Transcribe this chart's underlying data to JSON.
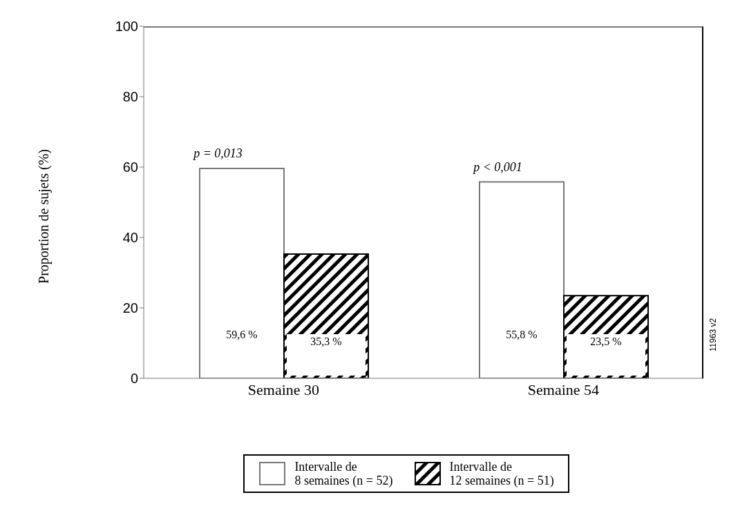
{
  "chart_data": {
    "type": "bar",
    "ylabel": "Proportion de sujets (%)",
    "categories": [
      "Semaine 30",
      "Semaine 54"
    ],
    "series": [
      {
        "name": "Intervalle de\n8 semaines (n = 52)",
        "color": "#ffffff",
        "values": [
          59.6,
          55.8
        ],
        "value_labels": [
          "59,6 %",
          "55,8 %"
        ]
      },
      {
        "name": "Intervalle de\n12 semaines (n = 51)",
        "color": "#000000",
        "values": [
          35.3,
          23.5
        ],
        "value_labels": [
          "35,3 %",
          "23,5 %"
        ]
      }
    ],
    "ylim": [
      0,
      100
    ],
    "yticks": [
      0,
      20,
      40,
      60,
      80,
      100
    ],
    "legend": "bottom",
    "annotations": [
      "p = 0,013",
      "p < 0,001",
      "11963 v2"
    ]
  }
}
